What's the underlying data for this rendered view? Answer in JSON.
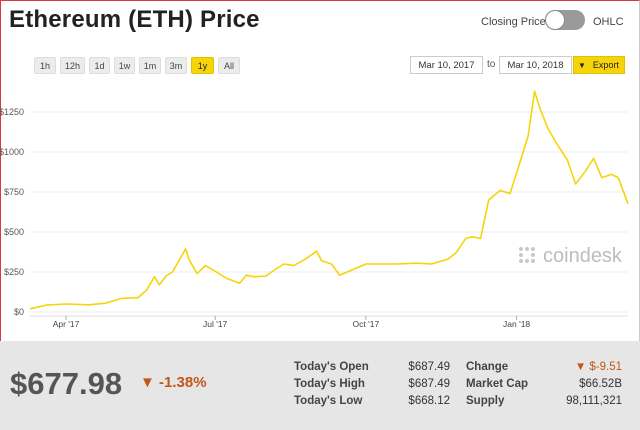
{
  "header": {
    "title": "Ethereum (ETH) Price",
    "toggle_left": "Closing Price",
    "toggle_right": "OHLC"
  },
  "controls": {
    "ranges": [
      "1h",
      "12h",
      "1d",
      "1w",
      "1m",
      "3m",
      "1y",
      "All"
    ],
    "active_range": "1y",
    "from_date": "Mar 10, 2017",
    "to_label": "to",
    "to_date": "Mar 10, 2018",
    "export_label": "Export"
  },
  "chart_data": {
    "type": "line",
    "series": [
      {
        "color": "#f5d50a",
        "points": [
          [
            "2017-03-10",
            20
          ],
          [
            "2017-03-20",
            43
          ],
          [
            "2017-04-01",
            50
          ],
          [
            "2017-04-15",
            45
          ],
          [
            "2017-04-25",
            55
          ],
          [
            "2017-05-05",
            85
          ],
          [
            "2017-05-15",
            90
          ],
          [
            "2017-05-20",
            135
          ],
          [
            "2017-05-25",
            220
          ],
          [
            "2017-05-28",
            170
          ],
          [
            "2017-06-01",
            225
          ],
          [
            "2017-06-05",
            250
          ],
          [
            "2017-06-10",
            340
          ],
          [
            "2017-06-13",
            395
          ],
          [
            "2017-06-15",
            330
          ],
          [
            "2017-06-20",
            240
          ],
          [
            "2017-06-25",
            290
          ],
          [
            "2017-07-01",
            255
          ],
          [
            "2017-07-08",
            210
          ],
          [
            "2017-07-16",
            180
          ],
          [
            "2017-07-20",
            230
          ],
          [
            "2017-07-25",
            220
          ],
          [
            "2017-08-01",
            225
          ],
          [
            "2017-08-08",
            275
          ],
          [
            "2017-08-12",
            300
          ],
          [
            "2017-08-18",
            290
          ],
          [
            "2017-08-25",
            330
          ],
          [
            "2017-09-01",
            380
          ],
          [
            "2017-09-04",
            320
          ],
          [
            "2017-09-10",
            300
          ],
          [
            "2017-09-15",
            230
          ],
          [
            "2017-09-22",
            260
          ],
          [
            "2017-10-01",
            300
          ],
          [
            "2017-10-10",
            300
          ],
          [
            "2017-10-20",
            300
          ],
          [
            "2017-11-01",
            305
          ],
          [
            "2017-11-10",
            300
          ],
          [
            "2017-11-20",
            330
          ],
          [
            "2017-11-25",
            370
          ],
          [
            "2017-12-01",
            460
          ],
          [
            "2017-12-05",
            470
          ],
          [
            "2017-12-10",
            460
          ],
          [
            "2017-12-15",
            700
          ],
          [
            "2017-12-22",
            760
          ],
          [
            "2017-12-28",
            740
          ],
          [
            "2018-01-02",
            900
          ],
          [
            "2018-01-08",
            1100
          ],
          [
            "2018-01-12",
            1380
          ],
          [
            "2018-01-15",
            1280
          ],
          [
            "2018-01-20",
            1150
          ],
          [
            "2018-01-25",
            1060
          ],
          [
            "2018-02-01",
            950
          ],
          [
            "2018-02-06",
            800
          ],
          [
            "2018-02-12",
            880
          ],
          [
            "2018-02-17",
            960
          ],
          [
            "2018-02-22",
            840
          ],
          [
            "2018-02-28",
            860
          ],
          [
            "2018-03-04",
            840
          ],
          [
            "2018-03-10",
            677
          ]
        ]
      }
    ],
    "y_ticks": [
      "$1250",
      "$1000",
      "$750",
      "$500",
      "$250",
      "$0"
    ],
    "y_tick_values": [
      1250,
      1000,
      750,
      500,
      250,
      0
    ],
    "ylim": [
      -50,
      1450
    ],
    "x_ticks": [
      "Apr '17",
      "Jul '17",
      "Oct '17",
      "Jan '18"
    ],
    "x_tick_dates": [
      "2017-04-01",
      "2017-07-01",
      "2017-10-01",
      "2018-01-01"
    ],
    "xlim": [
      "2017-03-10",
      "2018-03-10"
    ],
    "watermark": "coindesk",
    "grid": "horizontal"
  },
  "summary": {
    "price": "$677.98",
    "change_pct": "▼ -1.38%",
    "stats": [
      {
        "label": "Today's Open",
        "value": "$687.49"
      },
      {
        "label": "Today's High",
        "value": "$687.49"
      },
      {
        "label": "Today's Low",
        "value": "$668.12"
      },
      {
        "label": "Change",
        "value": "▼ $-9.51"
      },
      {
        "label": "Market Cap",
        "value": "$66.52B"
      },
      {
        "label": "Supply",
        "value": "98,111,321"
      }
    ]
  }
}
